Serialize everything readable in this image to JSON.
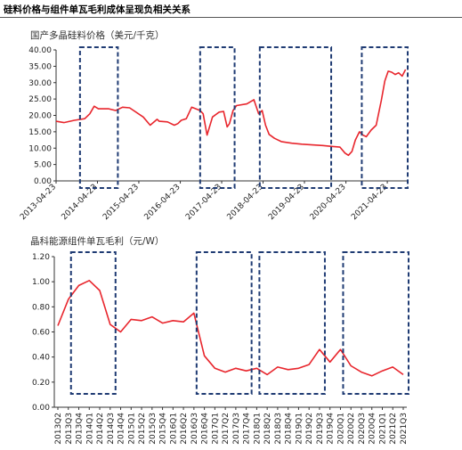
{
  "page_title": "硅料价格与组件单瓦毛利成体呈现负相关关系",
  "colors": {
    "series": "#e8262d",
    "highlight_box": "#1f3b73",
    "axis": "#333333"
  },
  "chart_data": [
    {
      "type": "line",
      "title": "国产多晶硅料价格（美元/千克）",
      "x_tick_labels": [
        "2013-04-23",
        "2014-04-23",
        "2015-04-23",
        "2016-04-23",
        "2017-04-23",
        "2018-04-23",
        "2019-04-23",
        "2020-04-23",
        "2021-04-23"
      ],
      "y_tick_labels": [
        "0.00",
        "5.00",
        "10.00",
        "15.00",
        "20.00",
        "25.00",
        "30.00",
        "35.00",
        "40.00"
      ],
      "ylim": [
        0,
        40
      ],
      "xlim": [
        "2013-04-23",
        "2021-10-20"
      ],
      "x": [
        "2013-04-23",
        "2013-07-01",
        "2013-10-01",
        "2014-01-01",
        "2014-02-15",
        "2014-03-25",
        "2014-05-01",
        "2014-08-01",
        "2014-10-01",
        "2014-12-01",
        "2015-02-01",
        "2015-06-01",
        "2015-08-01",
        "2015-10-01",
        "2015-10-20",
        "2016-01-01",
        "2016-03-01",
        "2016-04-01",
        "2016-05-01",
        "2016-06-15",
        "2016-08-01",
        "2016-10-15",
        "2016-11-10",
        "2016-12-15",
        "2017-02-01",
        "2017-04-01",
        "2017-05-10",
        "2017-06-10",
        "2017-07-01",
        "2017-08-01",
        "2017-09-01",
        "2017-12-01",
        "2018-02-01",
        "2018-03-15",
        "2018-04-15",
        "2018-05-15",
        "2018-06-15",
        "2018-08-01",
        "2018-10-01",
        "2019-01-01",
        "2019-04-01",
        "2019-07-01",
        "2019-10-01",
        "2020-01-01",
        "2020-03-01",
        "2020-04-15",
        "2020-05-15",
        "2020-06-15",
        "2020-07-15",
        "2020-08-20",
        "2020-09-20",
        "2020-10-20",
        "2020-12-01",
        "2021-01-15",
        "2021-03-01",
        "2021-04-01",
        "2021-05-01",
        "2021-06-01",
        "2021-07-01",
        "2021-08-01",
        "2021-09-01",
        "2021-10-01"
      ],
      "series": [
        {
          "values": [
            18.2,
            17.8,
            18.5,
            19.0,
            20.5,
            22.8,
            22.0,
            22.0,
            21.5,
            22.5,
            22.3,
            19.5,
            17.0,
            18.8,
            18.2,
            18.0,
            17.0,
            17.5,
            18.5,
            19.0,
            22.5,
            21.5,
            20.5,
            14.0,
            19.5,
            21.0,
            21.2,
            16.5,
            17.5,
            21.5,
            23.0,
            23.5,
            24.8,
            20.5,
            21.5,
            17.0,
            14.2,
            13.0,
            12.0,
            11.5,
            11.2,
            11.0,
            10.8,
            10.5,
            10.3,
            8.5,
            7.8,
            9.0,
            12.5,
            15.0,
            14.0,
            13.5,
            15.5,
            17.0,
            24.5,
            30.5,
            33.5,
            33.2,
            32.5,
            33.0,
            32.0,
            34.0
          ]
        }
      ],
      "highlight_ranges": [
        [
          "2013-11-20",
          "2014-10-20"
        ],
        [
          "2016-10-15",
          "2017-08-15"
        ],
        [
          "2018-03-25",
          "2019-12-15"
        ],
        [
          "2020-09-10",
          "2021-10-20"
        ]
      ]
    },
    {
      "type": "line",
      "title": "晶科能源组件单瓦毛利（元/W）",
      "categories": [
        "2013Q2",
        "2013Q3",
        "2013Q4",
        "2014Q1",
        "2014Q2",
        "2014Q3",
        "2014Q4",
        "2015Q1",
        "2015Q2",
        "2015Q3",
        "2015Q4",
        "2016Q1",
        "2016Q2",
        "2016Q3",
        "2016Q4",
        "2017Q1",
        "2017Q2",
        "2017Q3",
        "2017Q4",
        "2018Q1",
        "2018Q2",
        "2018Q3",
        "2018Q4",
        "2019Q1",
        "2019Q2",
        "2019Q3",
        "2019Q4",
        "2020Q1",
        "2020Q2",
        "2020Q3",
        "2020Q4",
        "2021Q1",
        "2021Q2",
        "2021Q3"
      ],
      "y_tick_labels": [
        "0.00",
        "0.20",
        "0.40",
        "0.60",
        "0.80",
        "1.00",
        "1.20"
      ],
      "ylim": [
        0,
        1.2
      ],
      "series": [
        {
          "values": [
            0.65,
            0.86,
            0.97,
            1.01,
            0.93,
            0.66,
            0.6,
            0.7,
            0.69,
            0.72,
            0.67,
            0.69,
            0.68,
            0.75,
            0.41,
            0.31,
            0.28,
            0.31,
            0.29,
            0.31,
            0.26,
            0.32,
            0.3,
            0.31,
            0.34,
            0.46,
            0.36,
            0.46,
            0.33,
            0.28,
            0.25,
            0.29,
            0.32,
            0.26
          ]
        }
      ],
      "highlight_ranges": [
        [
          "2013Q3",
          "2014Q3"
        ],
        [
          "2016Q3",
          "2017Q4"
        ],
        [
          "2018Q1",
          "2019Q3"
        ],
        [
          "2020Q1",
          "2021Q3"
        ]
      ]
    }
  ]
}
